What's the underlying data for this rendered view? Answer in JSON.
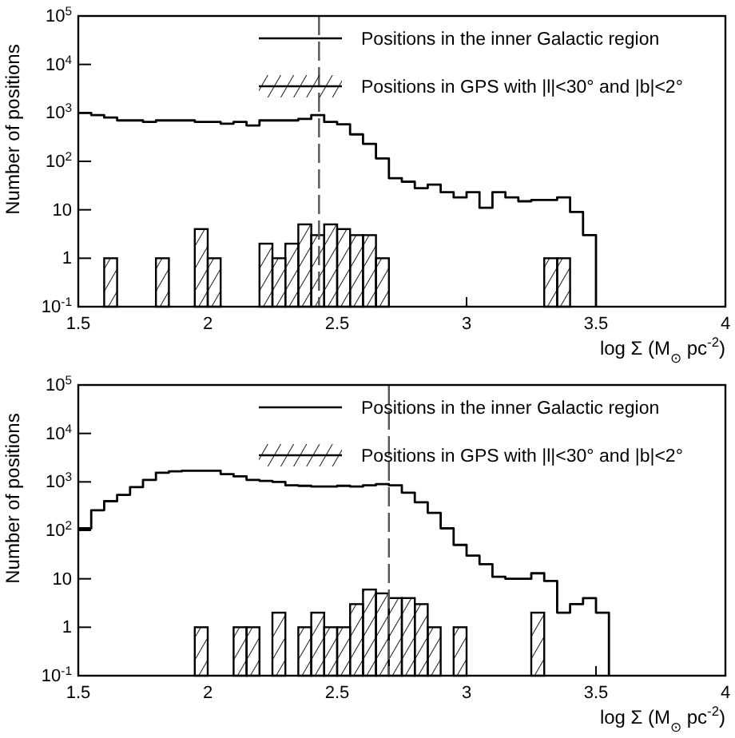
{
  "chart_data": [
    {
      "type": "histogram",
      "xlabel": "log Σ (M$_{⊙}$ pc$^{-2}$)",
      "ylabel": "Number of positions",
      "log": "y",
      "grid": false,
      "legend": "top right",
      "bins": [
        1.5,
        1.55,
        1.6,
        1.65,
        1.7,
        1.75,
        1.8,
        1.85,
        1.9,
        1.95,
        2,
        2.05,
        2.1,
        2.15,
        2.2,
        2.25,
        2.3,
        2.35,
        2.4,
        2.45,
        2.5,
        2.55,
        2.6,
        2.65,
        2.7,
        2.75,
        2.8,
        2.85,
        2.9,
        2.95,
        3,
        3.05,
        3.1,
        3.15,
        3.2,
        3.25,
        3.3,
        3.35,
        3.4,
        3.45,
        3.5
      ],
      "xlim": [
        1.5,
        4
      ],
      "xticks": [
        1.5,
        2,
        2.5,
        3,
        3.5,
        4
      ],
      "ylim": [
        0.1,
        100000
      ],
      "yticks": [
        {
          "value": 0.1,
          "label": "10$^{-1}$"
        },
        {
          "value": 1,
          "label": "1"
        },
        {
          "value": 10,
          "label": "10"
        },
        {
          "value": 100,
          "label": "10$^{2}$"
        },
        {
          "value": 1000,
          "label": "10$^{3}$"
        },
        {
          "value": 10000,
          "label": "10$^{4}$"
        },
        {
          "value": 100000,
          "label": "10$^{5}$"
        }
      ],
      "series": [
        {
          "name": "Positions in the inner Galactic region",
          "type": "step",
          "color": "#000000",
          "x": [
            1.5,
            1.55,
            1.6,
            1.65,
            1.7,
            1.75,
            1.8,
            1.85,
            1.9,
            1.95,
            2,
            2.05,
            2.1,
            2.15,
            2.2,
            2.25,
            2.3,
            2.35,
            2.4,
            2.45,
            2.5,
            2.55,
            2.6,
            2.65,
            2.7,
            2.75,
            2.8,
            2.85,
            2.9,
            2.95,
            3,
            3.05,
            3.1,
            3.15,
            3.2,
            3.25,
            3.3,
            3.35,
            3.4,
            3.45,
            3.5
          ],
          "values": [
            1000,
            900,
            800,
            700,
            700,
            650,
            700,
            700,
            700,
            650,
            650,
            600,
            650,
            550,
            700,
            700,
            700,
            750,
            900,
            650,
            580,
            360,
            230,
            115,
            45,
            38,
            28,
            33,
            23,
            18,
            23,
            11,
            23,
            18,
            15,
            16,
            16,
            18,
            9,
            3,
            0.1
          ]
        },
        {
          "name": "Positions in GPS with |l|<30° and |b|<2°",
          "type": "histogram",
          "color": "#000000",
          "values": [
            null,
            null,
            1,
            null,
            null,
            null,
            1,
            null,
            null,
            4,
            1,
            null,
            null,
            null,
            2,
            1,
            2,
            5,
            3,
            5,
            4,
            3,
            3,
            1,
            null,
            null,
            null,
            null,
            null,
            null,
            null,
            null,
            null,
            null,
            null,
            null,
            1,
            1,
            null,
            null
          ]
        }
      ],
      "ref_lines": [
        {
          "axis": "x",
          "value": 2.43,
          "line_style": "dashed",
          "color": "#555555"
        }
      ]
    },
    {
      "type": "histogram",
      "xlabel": "log Σ (M$_{⊙}$ pc$^{-2}$)",
      "ylabel": "Number of positions",
      "log": "y",
      "grid": false,
      "legend": "top right",
      "bins": [
        1.5,
        1.55,
        1.6,
        1.65,
        1.7,
        1.75,
        1.8,
        1.85,
        1.9,
        1.95,
        2,
        2.05,
        2.1,
        2.15,
        2.2,
        2.25,
        2.3,
        2.35,
        2.4,
        2.45,
        2.5,
        2.55,
        2.6,
        2.65,
        2.7,
        2.75,
        2.8,
        2.85,
        2.9,
        2.95,
        3,
        3.05,
        3.1,
        3.15,
        3.2,
        3.25,
        3.3,
        3.35,
        3.4,
        3.45,
        3.5,
        3.55
      ],
      "xlim": [
        1.5,
        4
      ],
      "xticks": [
        1.5,
        2,
        2.5,
        3,
        3.5,
        4
      ],
      "ylim": [
        0.1,
        100000
      ],
      "yticks": [
        {
          "value": 0.1,
          "label": "10$^{-1}$"
        },
        {
          "value": 1,
          "label": "1"
        },
        {
          "value": 10,
          "label": "10"
        },
        {
          "value": 100,
          "label": "10$^{2}$"
        },
        {
          "value": 1000,
          "label": "10$^{3}$"
        },
        {
          "value": 10000,
          "label": "10$^{4}$"
        },
        {
          "value": 100000,
          "label": "10$^{5}$"
        }
      ],
      "series": [
        {
          "name": "Positions in the inner Galactic region",
          "type": "step",
          "color": "#000000",
          "x": [
            1.5,
            1.55,
            1.6,
            1.65,
            1.7,
            1.75,
            1.8,
            1.85,
            1.9,
            1.95,
            2,
            2.05,
            2.1,
            2.15,
            2.2,
            2.25,
            2.3,
            2.35,
            2.4,
            2.45,
            2.5,
            2.55,
            2.6,
            2.65,
            2.7,
            2.75,
            2.8,
            2.85,
            2.9,
            2.95,
            3,
            3.05,
            3.1,
            3.15,
            3.2,
            3.25,
            3.3,
            3.35,
            3.4,
            3.45,
            3.5,
            3.55
          ],
          "values": [
            110,
            260,
            400,
            540,
            780,
            1100,
            1550,
            1650,
            1700,
            1700,
            1700,
            1450,
            1300,
            1100,
            1050,
            1000,
            850,
            830,
            800,
            800,
            830,
            800,
            850,
            900,
            850,
            600,
            380,
            230,
            110,
            50,
            30,
            20,
            11,
            10,
            10,
            13,
            9,
            2,
            3,
            4,
            2,
            0.1
          ]
        },
        {
          "name": "Positions in GPS with |l|<30° and |b|<2°",
          "type": "histogram",
          "color": "#000000",
          "values": [
            null,
            null,
            null,
            null,
            null,
            null,
            null,
            null,
            null,
            1,
            null,
            null,
            1,
            1,
            null,
            2,
            null,
            1,
            2,
            1,
            1,
            3,
            6,
            5,
            4,
            4,
            3,
            1,
            null,
            1,
            null,
            null,
            null,
            null,
            null,
            2,
            null,
            null,
            null,
            null,
            null
          ]
        }
      ],
      "ref_lines": [
        {
          "axis": "x",
          "value": 2.7,
          "line_style": "dashed",
          "color": "#555555"
        }
      ]
    }
  ]
}
